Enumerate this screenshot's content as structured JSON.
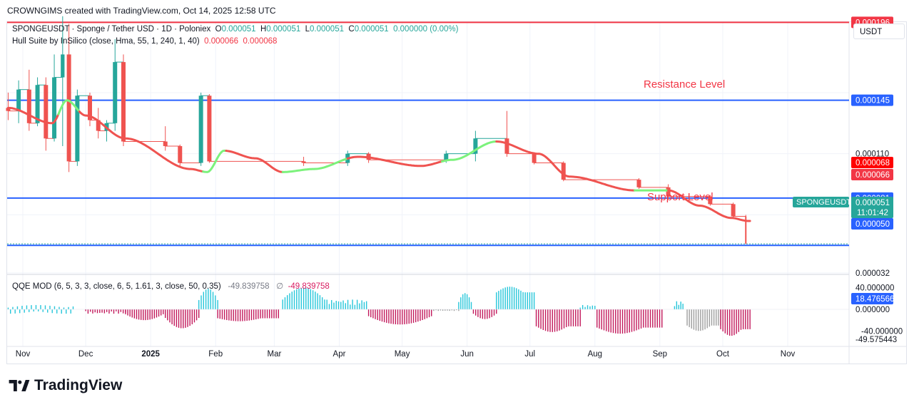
{
  "header": {
    "attribution": "CROWNGIMS created with TradingView.com, Oct 14, 2025 12:58 UTC"
  },
  "legend": {
    "symbol": "SPONGEUSDT · Sponge / Tether USD · 1D · Poloniex",
    "o_label": "O",
    "o_value": "0.000051",
    "h_label": "H",
    "h_value": "0.000051",
    "l_label": "L",
    "l_value": "0.000051",
    "c_label": "C",
    "c_value": "0.000051",
    "change": "0.000000 (0.00%)",
    "hull_label": "Hull Suite by InSilico (close, Hma, 55, 1, 240, 1, 40)",
    "hull_v1": "0.000066",
    "hull_v2": "0.000068",
    "qqe_label": "QQE MOD (6, 5, 3, 3, close, 6, 5, 1.61, 3, close, 50, 0.35)",
    "qqe_v1": "-49.839758",
    "qqe_sym": "∅",
    "qqe_v2": "-49.839758"
  },
  "currency_button": "USDT",
  "annotations": {
    "resistance": "Resistance Level",
    "support": "Support Level"
  },
  "brand": {
    "name": "TradingView"
  },
  "colors": {
    "up": "#26a69a",
    "down": "#ef5350",
    "hma_down": "#ef5350",
    "hma_up": "#7cf27c",
    "level_blue": "#2962ff",
    "level_red": "#f23645",
    "qqe_pink": "#c2185b",
    "qqe_blue": "#26c6da",
    "qqe_gray": "#9e9e9e"
  },
  "chart_data": [
    {
      "type": "candlestick",
      "title": "SPONGEUSDT · Sponge / Tether USD · 1D · Poloniex",
      "x_ticks": [
        "Nov",
        "Dec",
        "2025",
        "Feb",
        "Mar",
        "Apr",
        "May",
        "Jun",
        "Jul",
        "Aug",
        "Sep",
        "Oct",
        "Nov"
      ],
      "y_tick_labels": [
        "0.000110",
        "0.000032"
      ],
      "price_labels": {
        "hline_top": "0.000196",
        "hline_resistance": "0.000145",
        "hline_mid": "0.000081",
        "hull_a": "0.000068",
        "hull_b": "0.000066",
        "last": "0.000051",
        "countdown": "11:01:42",
        "hline_support": "0.000050",
        "symbol_tag": "SPONGEUSDT"
      },
      "horizontal_levels": [
        0.000196,
        0.000145,
        8.1e-05,
        5e-05
      ],
      "last_price": 5.1e-05,
      "ylim": [
        0.0,
        0.00021
      ],
      "hma_path": [
        [
          "2024-10-25",
          0.00014
        ],
        [
          "2024-11-15",
          0.00013
        ],
        [
          "2024-11-22",
          0.000145
        ],
        [
          "2024-12-01",
          0.000135
        ],
        [
          "2024-12-20",
          0.00012
        ],
        [
          "2025-01-20",
          0.0001
        ],
        [
          "2025-01-28",
          9.8e-05
        ],
        [
          "2025-02-05",
          0.000112
        ],
        [
          "2025-02-20",
          0.000107
        ],
        [
          "2025-03-05",
          9.8e-05
        ],
        [
          "2025-03-20",
          0.0001
        ],
        [
          "2025-04-10",
          0.000108
        ],
        [
          "2025-05-10",
          0.000102
        ],
        [
          "2025-05-25",
          0.000106
        ],
        [
          "2025-06-15",
          0.000118
        ],
        [
          "2025-07-05",
          0.00011
        ],
        [
          "2025-07-20",
          9.5e-05
        ],
        [
          "2025-08-20",
          8.6e-05
        ],
        [
          "2025-09-05",
          8.6e-05
        ],
        [
          "2025-09-20",
          7.6e-05
        ],
        [
          "2025-10-05",
          6.8e-05
        ],
        [
          "2025-10-13",
          6.6e-05
        ]
      ],
      "hma_trend_segments": [
        [
          "2024-10-25",
          "2024-11-18",
          "down"
        ],
        [
          "2024-11-18",
          "2024-11-28",
          "up"
        ],
        [
          "2024-11-28",
          "2025-01-26",
          "down"
        ],
        [
          "2025-01-26",
          "2025-02-06",
          "up"
        ],
        [
          "2025-02-06",
          "2025-03-05",
          "down"
        ],
        [
          "2025-03-05",
          "2025-04-05",
          "up"
        ],
        [
          "2025-04-05",
          "2025-05-20",
          "down"
        ],
        [
          "2025-05-20",
          "2025-06-15",
          "up"
        ],
        [
          "2025-06-15",
          "2025-08-20",
          "down"
        ],
        [
          "2025-08-20",
          "2025-09-05",
          "up"
        ],
        [
          "2025-09-05",
          "2025-10-14",
          "down"
        ]
      ],
      "candles": [
        [
          "2024-10-25",
          0.00014,
          0.00015,
          0.000132,
          0.000138
        ],
        [
          "2024-10-30",
          0.000138,
          0.000158,
          0.00013,
          0.000152
        ],
        [
          "2024-11-04",
          0.000152,
          0.000165,
          0.000125,
          0.00013
        ],
        [
          "2024-11-08",
          0.00013,
          0.00016,
          0.000128,
          0.000155
        ],
        [
          "2024-11-12",
          0.000155,
          0.00016,
          0.000112,
          0.00012
        ],
        [
          "2024-11-16",
          0.00012,
          0.000175,
          0.000118,
          0.00016
        ],
        [
          "2024-11-20",
          0.00016,
          0.0002,
          0.000115,
          0.000175
        ],
        [
          "2024-11-23",
          0.000175,
          0.000195,
          9.8e-05,
          0.000105
        ],
        [
          "2024-11-27",
          0.000105,
          0.000152,
          0.000102,
          0.000148
        ],
        [
          "2024-12-03",
          0.000148,
          0.00015,
          0.000128,
          0.000132
        ],
        [
          "2024-12-07",
          0.000132,
          0.00014,
          0.00012,
          0.000125
        ],
        [
          "2024-12-11",
          0.000125,
          0.000132,
          0.000118,
          0.00013
        ],
        [
          "2024-12-15",
          0.00013,
          0.000185,
          0.000125,
          0.00017
        ],
        [
          "2024-12-19",
          0.00017,
          0.000175,
          0.000115,
          0.000118
        ],
        [
          "2025-01-08",
          0.000118,
          0.000128,
          0.000112,
          0.000115
        ],
        [
          "2025-01-15",
          0.000115,
          0.000116,
          0.000102,
          0.000104
        ],
        [
          "2025-01-25",
          0.000104,
          0.00015,
          0.000102,
          0.000148
        ],
        [
          "2025-01-29",
          0.000148,
          0.000149,
          0.000104,
          0.000105
        ],
        [
          "2025-03-15",
          0.000105,
          0.000108,
          0.000102,
          0.000104
        ],
        [
          "2025-04-05",
          0.000104,
          0.000112,
          0.000102,
          0.00011
        ],
        [
          "2025-04-15",
          0.00011,
          0.000111,
          0.000104,
          0.000106
        ],
        [
          "2025-05-22",
          0.000106,
          0.000112,
          0.000104,
          0.00011
        ],
        [
          "2025-06-05",
          0.00011,
          0.000125,
          0.000105,
          0.00012
        ],
        [
          "2025-06-20",
          0.00012,
          0.000138,
          0.000108,
          0.00011
        ],
        [
          "2025-07-03",
          0.00011,
          0.000111,
          0.000103,
          0.000104
        ],
        [
          "2025-07-17",
          0.000104,
          0.000105,
          9.2e-05,
          9.3e-05
        ],
        [
          "2025-08-22",
          9.3e-05,
          9.4e-05,
          8.7e-05,
          8.8e-05
        ],
        [
          "2025-09-05",
          8.8e-05,
          9e-05,
          8e-05,
          8.2e-05
        ],
        [
          "2025-09-25",
          8.2e-05,
          8.3e-05,
          7.6e-05,
          7.7e-05
        ],
        [
          "2025-10-06",
          7.7e-05,
          7.8e-05,
          6.8e-05,
          6.9e-05
        ],
        [
          "2025-10-12",
          6.9e-05,
          7e-05,
          5.1e-05,
          5.1e-05
        ]
      ]
    },
    {
      "type": "bar",
      "title": "QQE MOD (6, 5, 3, 3, close, 6, 5, 1.61, 3, close, 50, 0.35)",
      "y_tick_labels": [
        "40.000000",
        "0.000000",
        "-40.000000"
      ],
      "value_labels": [
        "18.476566",
        "-49.575443"
      ],
      "ylim": [
        -55,
        50
      ],
      "segments": [
        {
          "start": "2024-10-25",
          "end": "2024-11-25",
          "pattern": "mixed_small",
          "amp": 8,
          "color": "pink_blue_mix"
        },
        {
          "start": "2024-12-01",
          "end": "2024-12-20",
          "pattern": "small_neg",
          "amp": -8,
          "color": "pink"
        },
        {
          "start": "2024-12-20",
          "end": "2025-01-07",
          "pattern": "neg_hump",
          "amp": -20,
          "color": "pink"
        },
        {
          "start": "2025-01-08",
          "end": "2025-01-24",
          "pattern": "neg_hump",
          "amp": -35,
          "color": "pink"
        },
        {
          "start": "2025-01-24",
          "end": "2025-02-02",
          "pattern": "pos_hump",
          "amp": 38,
          "color": "blue"
        },
        {
          "start": "2025-02-02",
          "end": "2025-03-03",
          "pattern": "neg_flat",
          "amp": -22,
          "color": "pink"
        },
        {
          "start": "2025-03-05",
          "end": "2025-03-25",
          "pattern": "pos_hump",
          "amp": 40,
          "color": "blue"
        },
        {
          "start": "2025-03-25",
          "end": "2025-04-14",
          "pattern": "pos_small",
          "amp": 18,
          "color": "blue"
        },
        {
          "start": "2025-04-15",
          "end": "2025-05-15",
          "pattern": "neg_hump",
          "amp": -28,
          "color": "pink"
        },
        {
          "start": "2025-05-15",
          "end": "2025-05-28",
          "pattern": "neg_small",
          "amp": -3,
          "color": "gray"
        },
        {
          "start": "2025-05-28",
          "end": "2025-06-03",
          "pattern": "pos_hump",
          "amp": 30,
          "color": "blue"
        },
        {
          "start": "2025-06-04",
          "end": "2025-06-15",
          "pattern": "neg_hump",
          "amp": -18,
          "color": "pink"
        },
        {
          "start": "2025-06-15",
          "end": "2025-07-03",
          "pattern": "pos_flat",
          "amp": 42,
          "color": "blue"
        },
        {
          "start": "2025-07-04",
          "end": "2025-07-25",
          "pattern": "neg_flat",
          "amp": -42,
          "color": "pink"
        },
        {
          "start": "2025-07-25",
          "end": "2025-08-01",
          "pattern": "pos_small",
          "amp": 8,
          "color": "blue"
        },
        {
          "start": "2025-08-02",
          "end": "2025-09-02",
          "pattern": "neg_flat",
          "amp": -45,
          "color": "pink"
        },
        {
          "start": "2025-09-08",
          "end": "2025-09-12",
          "pattern": "pos_small",
          "amp": 15,
          "color": "blue"
        },
        {
          "start": "2025-09-14",
          "end": "2025-09-30",
          "pattern": "neg_flat",
          "amp": -40,
          "color": "gray"
        },
        {
          "start": "2025-09-30",
          "end": "2025-10-14",
          "pattern": "neg_flat",
          "amp": -49,
          "color": "pink"
        }
      ]
    }
  ]
}
